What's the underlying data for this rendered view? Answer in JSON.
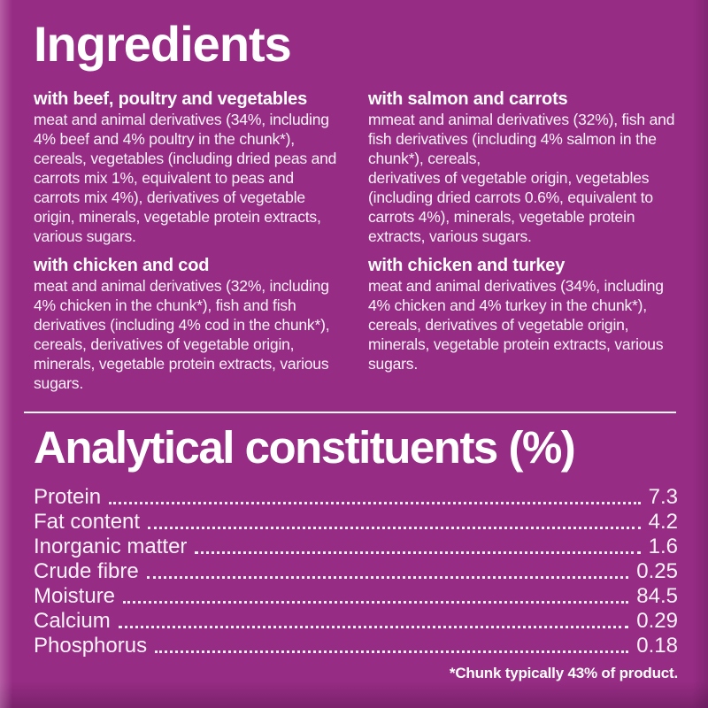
{
  "label": {
    "background_color": "#962c84",
    "background_bottom_color": "#651b55",
    "text_color": "#ffffff"
  },
  "ingredients": {
    "heading": "Ingredients",
    "columns": [
      {
        "blocks": [
          {
            "name": "with beef, poultry and vegetables",
            "text": "meat and animal derivatives (34%, including 4% beef and 4% poultry in the chunk*), cereals, vegetables (including dried peas and carrots mix 1%, equivalent to peas and carrots mix 4%), derivatives of vegetable origin, minerals, vegetable protein extracts, various sugars."
          },
          {
            "name": "with chicken and cod",
            "text": "meat and animal derivatives (32%, including 4% chicken in the chunk*), fish and fish derivatives (including 4% cod in the chunk*), cereals, derivatives of vegetable origin, minerals, vegetable protein extracts, various sugars."
          }
        ]
      },
      {
        "blocks": [
          {
            "name": "with salmon and carrots",
            "text": "mmeat and animal derivatives (32%), fish and fish derivatives (including 4% salmon in the chunk*), cereals,\nderivatives of vegetable origin, vegetables (including dried carrots 0.6%, equivalent to carrots 4%), minerals, vegetable protein extracts, various sugars."
          },
          {
            "name": "with chicken and turkey",
            "text": "meat and animal derivatives (34%, including 4% chicken and 4% turkey in the chunk*), cereals, derivatives of vegetable origin, minerals, vegetable protein extracts, various sugars."
          }
        ]
      }
    ]
  },
  "analytical": {
    "heading": "Analytical constituents (%)",
    "rows": [
      {
        "label": "Protein",
        "value": "7.3"
      },
      {
        "label": "Fat content",
        "value": "4.2"
      },
      {
        "label": "Inorganic matter",
        "value": "1.6"
      },
      {
        "label": "Crude fibre",
        "value": "0.25"
      },
      {
        "label": "Moisture",
        "value": "84.5"
      },
      {
        "label": "Calcium",
        "value": "0.29"
      },
      {
        "label": "Phosphorus",
        "value": "0.18"
      }
    ],
    "footnote": "*Chunk typically 43% of product."
  }
}
